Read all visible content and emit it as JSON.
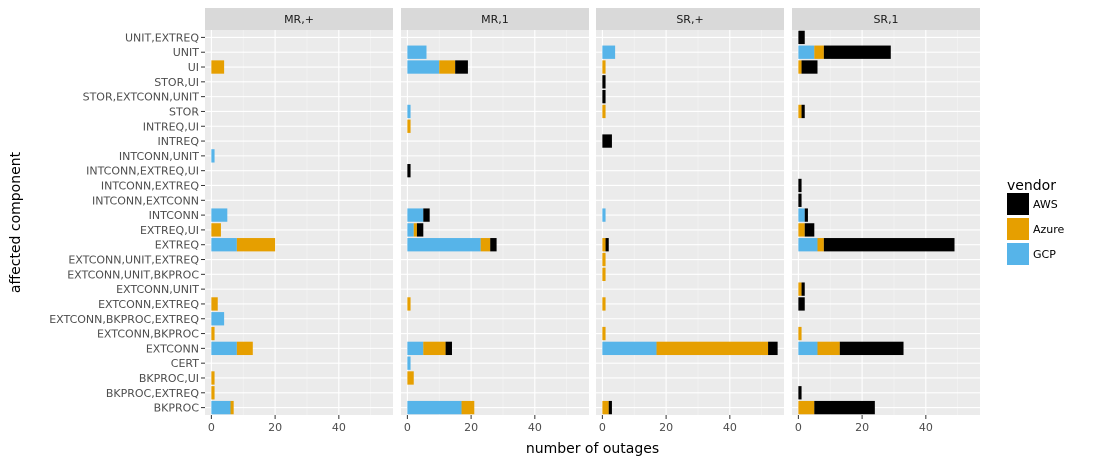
{
  "chart_data": {
    "type": "bar",
    "orientation": "horizontal",
    "stacked": true,
    "facets": [
      "MR,+",
      "MR,1",
      "SR,+",
      "SR,1"
    ],
    "xlabel": "number of outages",
    "ylabel": "affected component",
    "xlim": [
      -2,
      57
    ],
    "x_ticks": [
      0,
      20,
      40
    ],
    "grid": true,
    "legend": {
      "title": "vendor",
      "placement": "right",
      "entries": [
        "AWS",
        "Azure",
        "GCP"
      ]
    },
    "colors": {
      "AWS": "#000000",
      "Azure": "#E69F00",
      "GCP": "#56B4E9"
    },
    "stack_order": [
      "GCP",
      "Azure",
      "AWS"
    ],
    "categories": [
      "UNIT,EXTREQ",
      "UNIT",
      "UI",
      "STOR,UI",
      "STOR,EXTCONN,UNIT",
      "STOR",
      "INTREQ,UI",
      "INTREQ",
      "INTCONN,UNIT",
      "INTCONN,EXTREQ,UI",
      "INTCONN,EXTREQ",
      "INTCONN,EXTCONN",
      "INTCONN",
      "EXTREQ,UI",
      "EXTREQ",
      "EXTCONN,UNIT,EXTREQ",
      "EXTCONN,UNIT,BKPROC",
      "EXTCONN,UNIT",
      "EXTCONN,EXTREQ",
      "EXTCONN,BKPROC,EXTREQ",
      "EXTCONN,BKPROC",
      "EXTCONN",
      "CERT",
      "BKPROC,UI",
      "BKPROC,EXTREQ",
      "BKPROC"
    ],
    "data": {
      "MR,+": {
        "UI": {
          "Azure": 4
        },
        "INTCONN,UNIT": {
          "GCP": 1
        },
        "INTCONN": {
          "GCP": 5
        },
        "EXTREQ,UI": {
          "Azure": 3
        },
        "EXTREQ": {
          "GCP": 8,
          "Azure": 12
        },
        "EXTCONN,EXTREQ": {
          "Azure": 2
        },
        "EXTCONN,BKPROC,EXTREQ": {
          "GCP": 4
        },
        "EXTCONN,BKPROC": {
          "Azure": 1
        },
        "EXTCONN": {
          "GCP": 8,
          "Azure": 5
        },
        "BKPROC,UI": {
          "Azure": 1
        },
        "BKPROC,EXTREQ": {
          "Azure": 1
        },
        "BKPROC": {
          "GCP": 6,
          "Azure": 1
        }
      },
      "MR,1": {
        "UNIT": {
          "GCP": 6
        },
        "UI": {
          "GCP": 10,
          "Azure": 5,
          "AWS": 4
        },
        "STOR": {
          "GCP": 1
        },
        "INTREQ,UI": {
          "Azure": 1
        },
        "INTCONN,EXTREQ,UI": {
          "AWS": 1
        },
        "INTCONN": {
          "GCP": 5,
          "AWS": 2
        },
        "EXTREQ,UI": {
          "GCP": 2,
          "Azure": 1,
          "AWS": 2
        },
        "EXTREQ": {
          "GCP": 23,
          "Azure": 3,
          "AWS": 2
        },
        "EXTCONN,EXTREQ": {
          "Azure": 1
        },
        "EXTCONN": {
          "GCP": 5,
          "Azure": 7,
          "AWS": 2
        },
        "CERT": {
          "GCP": 1
        },
        "BKPROC,UI": {
          "Azure": 2
        },
        "BKPROC": {
          "GCP": 17,
          "Azure": 4
        }
      },
      "SR,+": {
        "UNIT": {
          "GCP": 4
        },
        "UI": {
          "Azure": 1
        },
        "STOR,UI": {
          "AWS": 1
        },
        "STOR,EXTCONN,UNIT": {
          "AWS": 1
        },
        "STOR": {
          "Azure": 1
        },
        "INTREQ": {
          "AWS": 3
        },
        "INTCONN": {
          "GCP": 1
        },
        "EXTREQ": {
          "Azure": 1,
          "AWS": 1
        },
        "EXTCONN,UNIT,EXTREQ": {
          "Azure": 1
        },
        "EXTCONN,UNIT,BKPROC": {
          "Azure": 1
        },
        "EXTCONN,EXTREQ": {
          "Azure": 1
        },
        "EXTCONN,BKPROC": {
          "Azure": 1
        },
        "EXTCONN": {
          "GCP": 17,
          "Azure": 35,
          "AWS": 3
        },
        "BKPROC": {
          "Azure": 2,
          "AWS": 1
        }
      },
      "SR,1": {
        "UNIT,EXTREQ": {
          "AWS": 2
        },
        "UNIT": {
          "GCP": 5,
          "Azure": 3,
          "AWS": 21
        },
        "UI": {
          "Azure": 1,
          "AWS": 5
        },
        "STOR": {
          "Azure": 1,
          "AWS": 1
        },
        "INTCONN,EXTREQ": {
          "AWS": 1
        },
        "INTCONN,EXTCONN": {
          "AWS": 1
        },
        "INTCONN": {
          "GCP": 2,
          "AWS": 1
        },
        "EXTREQ,UI": {
          "Azure": 2,
          "AWS": 3
        },
        "EXTREQ": {
          "GCP": 6,
          "Azure": 2,
          "AWS": 41
        },
        "EXTCONN,UNIT": {
          "Azure": 1,
          "AWS": 1
        },
        "EXTCONN,EXTREQ": {
          "AWS": 2
        },
        "EXTCONN,BKPROC": {
          "Azure": 1
        },
        "EXTCONN": {
          "GCP": 6,
          "Azure": 7,
          "AWS": 20
        },
        "BKPROC,EXTREQ": {
          "AWS": 1
        },
        "BKPROC": {
          "Azure": 5,
          "AWS": 19
        }
      }
    }
  }
}
